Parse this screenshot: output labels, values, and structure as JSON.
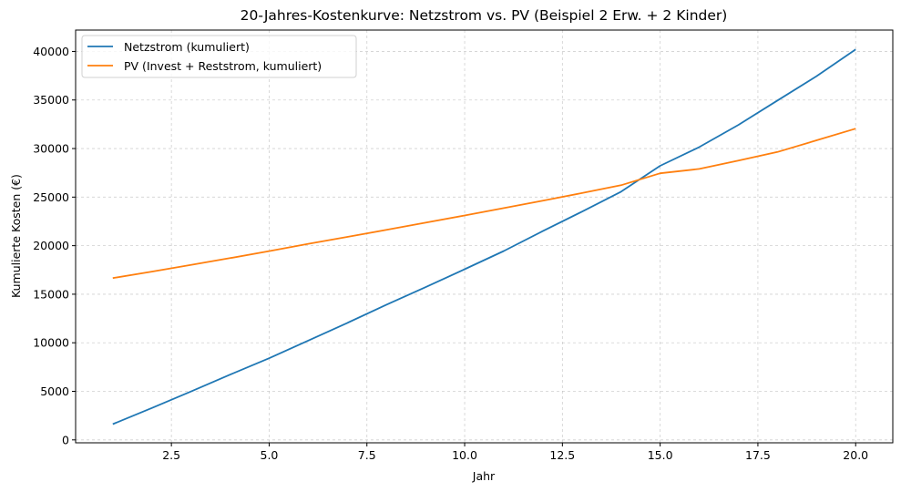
{
  "chart_data": {
    "type": "line",
    "title": "20-Jahres-Kostenkurve: Netzstrom vs. PV (Beispiel 2 Erw. + 2 Kinder)",
    "xlabel": "Jahr",
    "ylabel": "Kumulierte Kosten (€)",
    "xlim": [
      0.05,
      20.95
    ],
    "ylim": [
      -300,
      42200
    ],
    "xticks": [
      2.5,
      5.0,
      7.5,
      10.0,
      12.5,
      15.0,
      17.5,
      20.0
    ],
    "xtick_labels": [
      "2.5",
      "5.0",
      "7.5",
      "10.0",
      "12.5",
      "15.0",
      "17.5",
      "20.0"
    ],
    "yticks": [
      0,
      5000,
      10000,
      15000,
      20000,
      25000,
      30000,
      35000,
      40000
    ],
    "ytick_labels": [
      "0",
      "5000",
      "10000",
      "15000",
      "20000",
      "25000",
      "30000",
      "35000",
      "40000"
    ],
    "grid": true,
    "legend_position": "upper left",
    "x": [
      1,
      2,
      3,
      4,
      5,
      6,
      7,
      8,
      9,
      10,
      11,
      12,
      13,
      14,
      15,
      16,
      17,
      18,
      19,
      20
    ],
    "series": [
      {
        "name": "Netzstrom (kumuliert)",
        "color": "#1f77b4",
        "values": [
          1620,
          3280,
          4980,
          6720,
          8410,
          10230,
          12050,
          13920,
          15720,
          17570,
          19450,
          21500,
          23500,
          25560,
          28220,
          30150,
          32430,
          34950,
          37450,
          40200
        ]
      },
      {
        "name": "PV (Invest + Reststrom, kumuliert)",
        "color": "#ff7f0e",
        "values": [
          16660,
          17330,
          18010,
          18720,
          19440,
          20190,
          20900,
          21630,
          22370,
          23110,
          23870,
          24640,
          25420,
          26220,
          27450,
          27900,
          28760,
          29650,
          30850,
          32050
        ]
      }
    ]
  }
}
